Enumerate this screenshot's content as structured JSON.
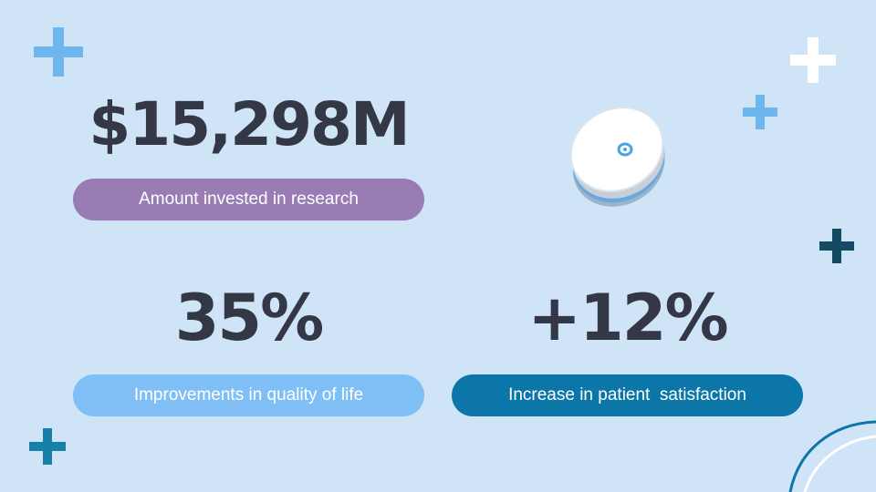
{
  "stats": [
    {
      "value": "$15,298M",
      "label": "Amount invested in research",
      "color": "#9a7cb5"
    },
    {
      "value": "35%",
      "label": "Improvements in quality of life",
      "color": "#7fbff5"
    },
    {
      "value": "+12%",
      "label": "Increase in patient  satisfaction",
      "color": "#0d76a8"
    }
  ],
  "colors": {
    "background": "#cfe4f7",
    "text": "#343846",
    "plus_light_blue": "#6db6ee",
    "plus_white": "#ffffff",
    "plus_dark_navy": "#154a63",
    "plus_teal": "#1780a8"
  },
  "icons": [
    "plus-icon",
    "glucose-sensor-icon",
    "curve-decoration"
  ]
}
